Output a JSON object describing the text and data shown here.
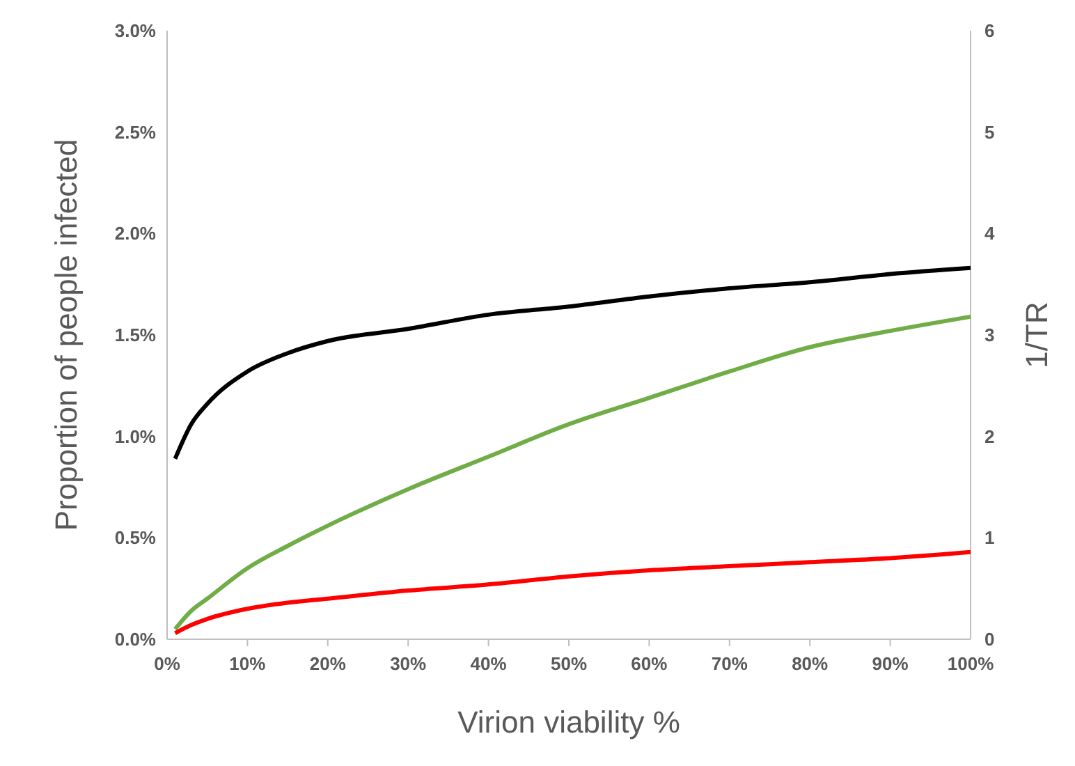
{
  "chart_data": {
    "type": "line",
    "xlabel": "Virion viability %",
    "ylabel": "Proportion of people infected",
    "y2label": "1/TR",
    "x": [
      1,
      3,
      5,
      10,
      15,
      20,
      30,
      40,
      50,
      60,
      70,
      80,
      90,
      100
    ],
    "series": [
      {
        "color": "#000000",
        "values": [
          0.89,
          1.06,
          1.16,
          1.32,
          1.41,
          1.47,
          1.53,
          1.6,
          1.64,
          1.69,
          1.73,
          1.76,
          1.8,
          1.83
        ]
      },
      {
        "color": "#70ad47",
        "values": [
          0.05,
          0.14,
          0.2,
          0.35,
          0.46,
          0.56,
          0.74,
          0.9,
          1.06,
          1.19,
          1.32,
          1.44,
          1.52,
          1.59
        ]
      },
      {
        "color": "#ff0000",
        "values": [
          0.03,
          0.07,
          0.1,
          0.15,
          0.18,
          0.2,
          0.24,
          0.27,
          0.31,
          0.34,
          0.36,
          0.38,
          0.4,
          0.43
        ]
      }
    ],
    "xlim": [
      0,
      100
    ],
    "xticks": [
      {
        "value": 0,
        "label": "0%"
      },
      {
        "value": 10,
        "label": "10%"
      },
      {
        "value": 20,
        "label": "20%"
      },
      {
        "value": 30,
        "label": "30%"
      },
      {
        "value": 40,
        "label": "40%"
      },
      {
        "value": 50,
        "label": "50%"
      },
      {
        "value": 60,
        "label": "60%"
      },
      {
        "value": 70,
        "label": "70%"
      },
      {
        "value": 80,
        "label": "80%"
      },
      {
        "value": 90,
        "label": "90%"
      },
      {
        "value": 100,
        "label": "100%"
      }
    ],
    "ylim": [
      0,
      3
    ],
    "yticks": [
      {
        "value": 0,
        "label": "0.0%"
      },
      {
        "value": 0.5,
        "label": "0.5%"
      },
      {
        "value": 1,
        "label": "1.0%"
      },
      {
        "value": 1.5,
        "label": "1.5%"
      },
      {
        "value": 2,
        "label": "2.0%"
      },
      {
        "value": 2.5,
        "label": "2.5%"
      },
      {
        "value": 3,
        "label": "3.0%"
      }
    ],
    "y2lim": [
      0,
      6
    ],
    "y2ticks": [
      0,
      1,
      2,
      3,
      4,
      5,
      6
    ],
    "grid": false,
    "marker": "none",
    "line_style": "solid"
  }
}
